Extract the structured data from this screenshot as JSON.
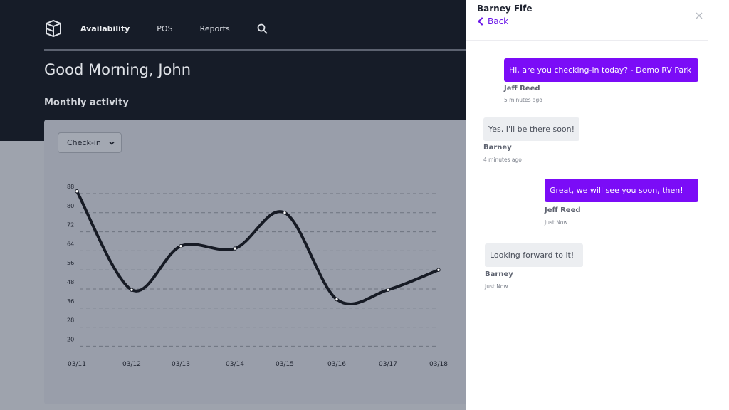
{
  "app": {
    "nav": {
      "items": [
        {
          "label": "Availability",
          "active": true
        },
        {
          "label": "POS",
          "active": false
        },
        {
          "label": "Reports",
          "active": false
        }
      ],
      "logo_icon": "cube-logo-icon",
      "search_icon": "search-icon"
    },
    "greeting": "Good Morning, John",
    "section_title": "Monthly activity",
    "dropdown": {
      "selected": "Check-in",
      "icon": "chevron-down-icon"
    }
  },
  "chart_data": {
    "type": "line",
    "categories": [
      "03/11",
      "03/12",
      "03/13",
      "03/14",
      "03/15",
      "03/16",
      "03/17",
      "03/18"
    ],
    "series": [
      {
        "values": [
          86,
          43,
          63,
          62,
          77,
          37,
          43,
          53
        ]
      }
    ],
    "yticks": [
      88,
      80,
      72,
      64,
      56,
      48,
      36,
      28,
      20
    ],
    "grid": true,
    "smooth": true
  },
  "chat": {
    "contact_name": "Barney Fife",
    "back_label": "Back",
    "close_icon": "close-icon",
    "accent_color": "#7b0cf7",
    "messages": [
      {
        "text": "Hi, are you checking-in today? - Demo RV Park",
        "sender": "Jeff Reed",
        "time": "5 minutes ago",
        "direction": "out"
      },
      {
        "text": "Yes, I'll be there soon!",
        "sender": "Barney",
        "time": "4 minutes ago",
        "direction": "in"
      },
      {
        "text": "Great, we will see you soon, then!",
        "sender": "Jeff Reed",
        "time": "Just Now",
        "direction": "out"
      },
      {
        "text": "Looking forward to it!",
        "sender": "Barney",
        "time": "Just Now",
        "direction": "in"
      }
    ]
  }
}
